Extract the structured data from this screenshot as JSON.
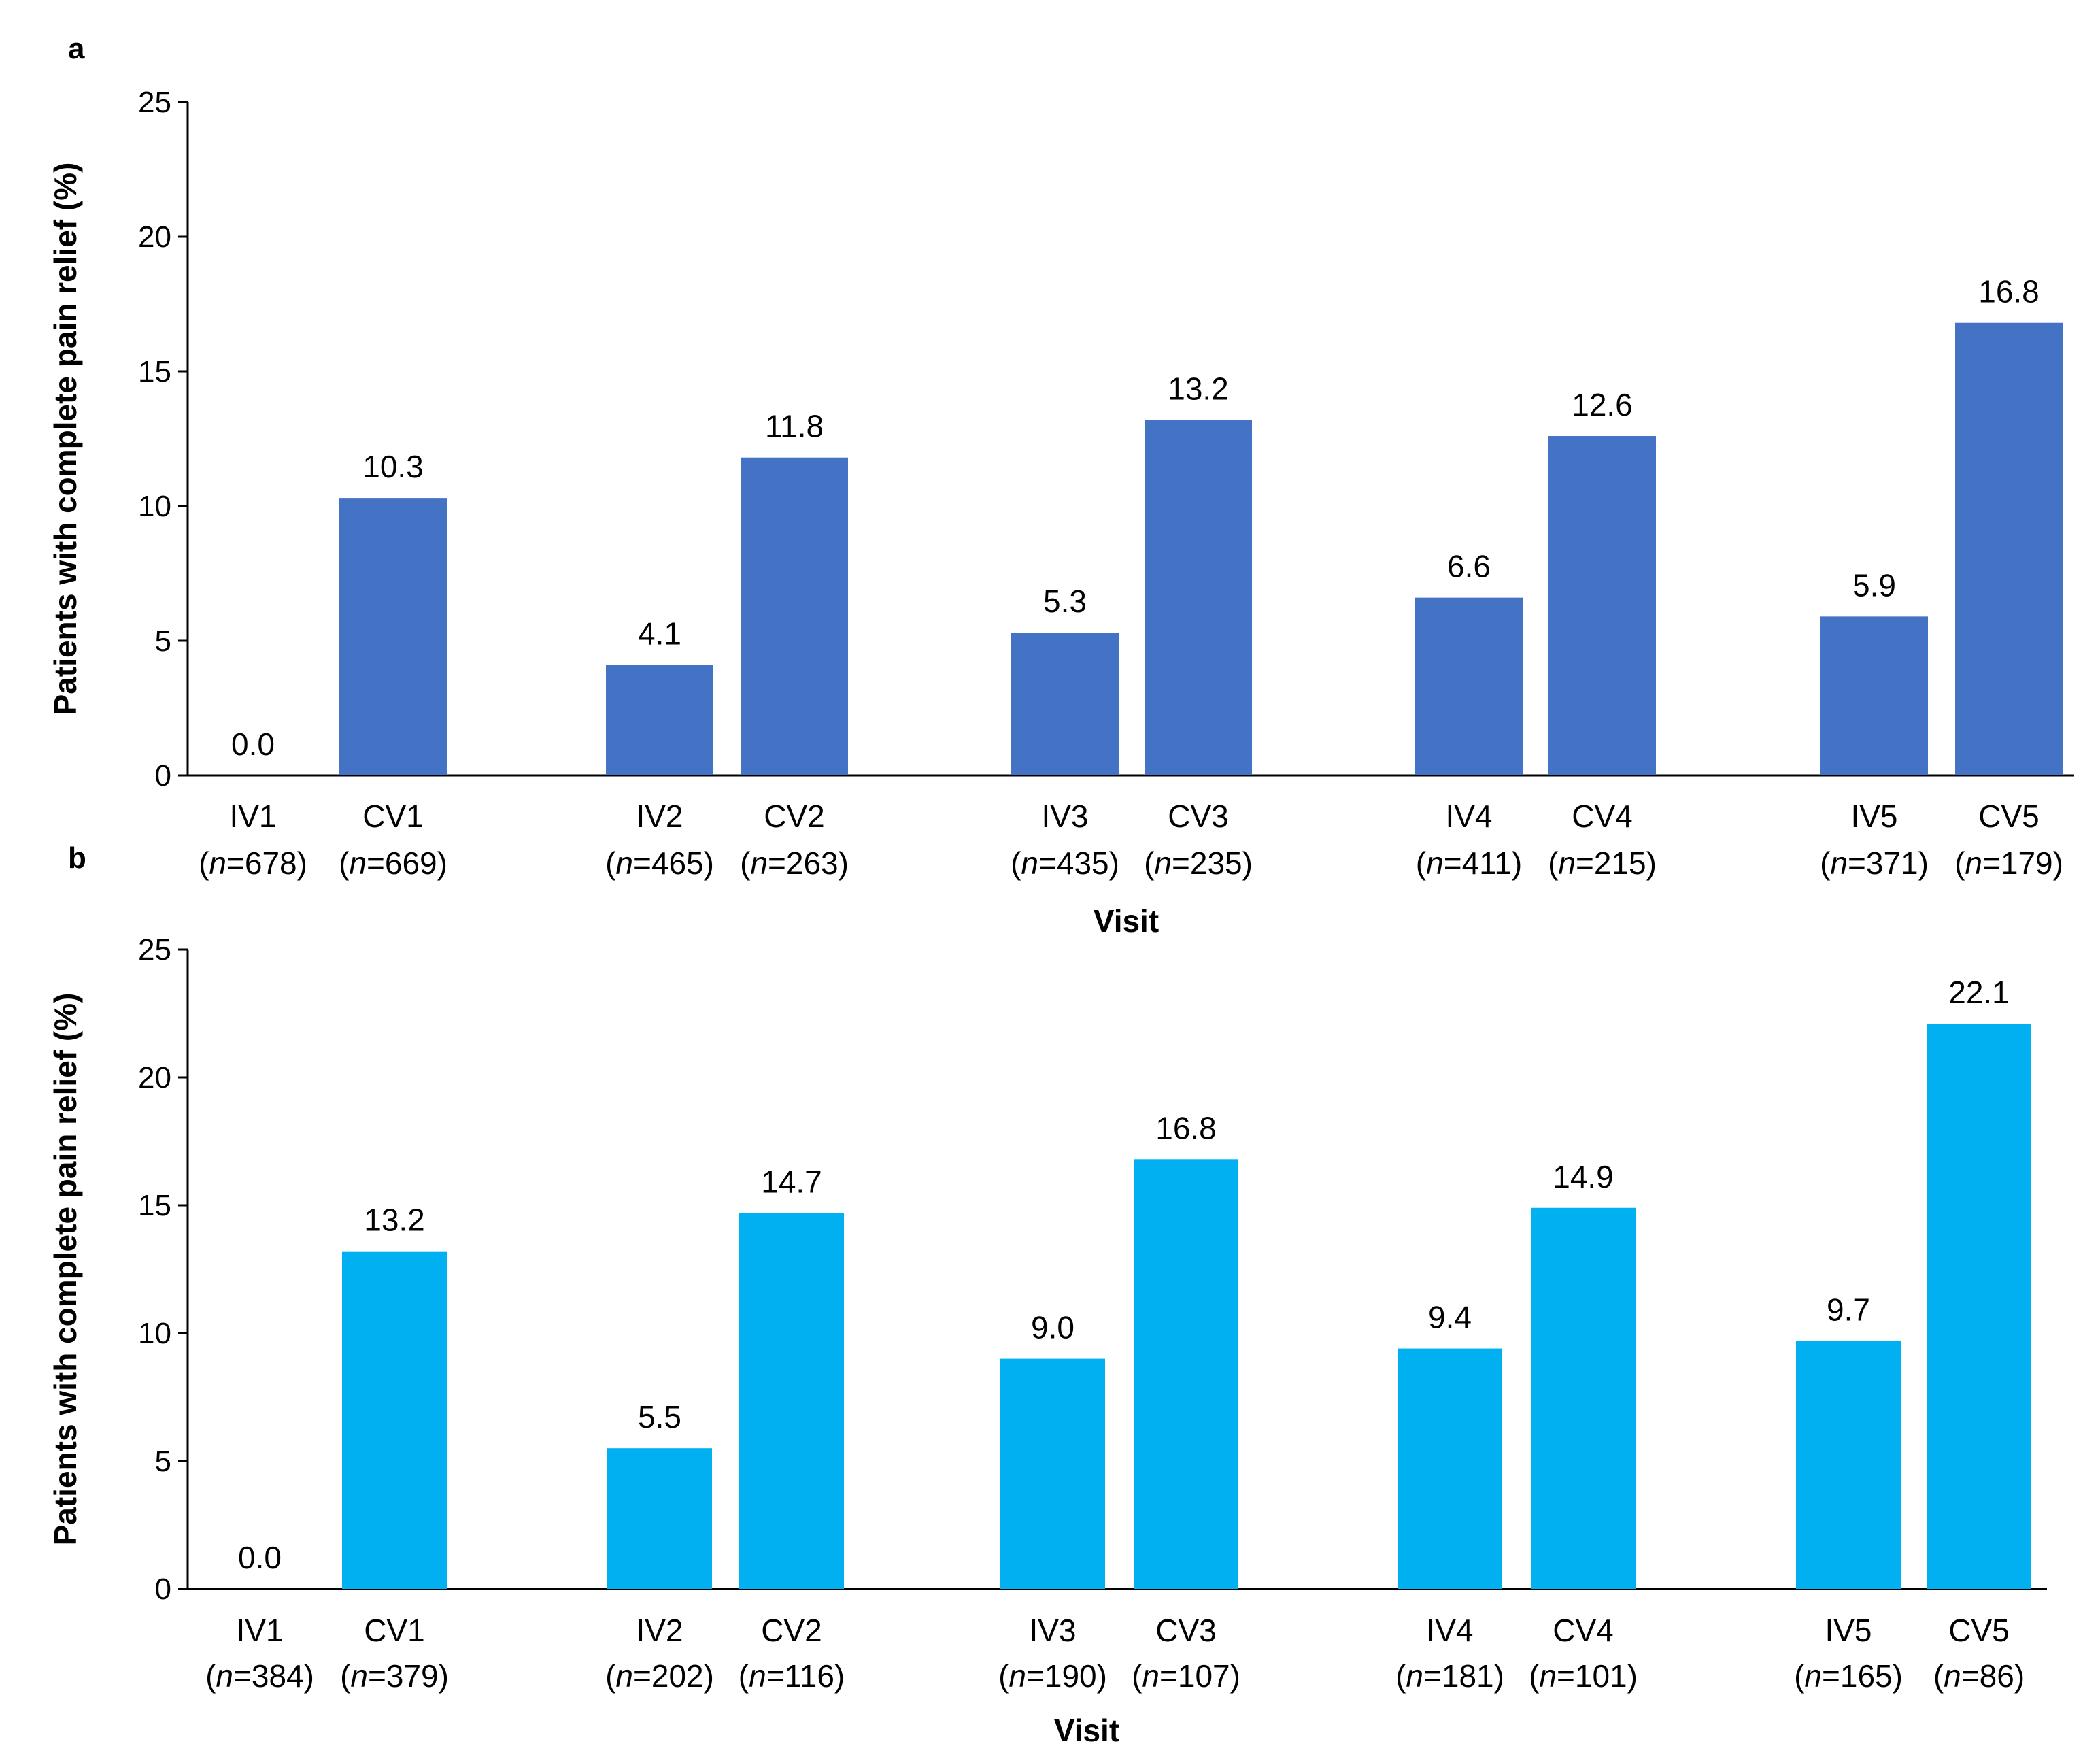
{
  "chart_data": [
    {
      "panel": "a",
      "type": "bar",
      "title": "",
      "xlabel": "Visit",
      "ylabel": "Patients with complete pain relief (%)",
      "ylim": [
        0,
        25
      ],
      "yticks": [
        0,
        5,
        10,
        15,
        20,
        25
      ],
      "grid": false,
      "color": "#4472C4",
      "categories": [
        {
          "label": "IV1",
          "n": "678",
          "value": 0.0,
          "value_label": "0.0"
        },
        {
          "label": "CV1",
          "n": "669",
          "value": 10.3,
          "value_label": "10.3"
        },
        {
          "label": "IV2",
          "n": "465",
          "value": 4.1,
          "value_label": "4.1"
        },
        {
          "label": "CV2",
          "n": "263",
          "value": 11.8,
          "value_label": "11.8"
        },
        {
          "label": "IV3",
          "n": "435",
          "value": 5.3,
          "value_label": "5.3"
        },
        {
          "label": "CV3",
          "n": "235",
          "value": 13.2,
          "value_label": "13.2"
        },
        {
          "label": "IV4",
          "n": "411",
          "value": 6.6,
          "value_label": "6.6"
        },
        {
          "label": "CV4",
          "n": "215",
          "value": 12.6,
          "value_label": "12.6"
        },
        {
          "label": "IV5",
          "n": "371",
          "value": 5.9,
          "value_label": "5.9"
        },
        {
          "label": "CV5",
          "n": "179",
          "value": 16.8,
          "value_label": "16.8"
        }
      ]
    },
    {
      "panel": "b",
      "type": "bar",
      "title": "",
      "xlabel": "Visit",
      "ylabel": "Patients with complete pain relief (%)",
      "ylim": [
        0,
        25
      ],
      "yticks": [
        0,
        5,
        10,
        15,
        20,
        25
      ],
      "grid": false,
      "color": "#00B0F0",
      "categories": [
        {
          "label": "IV1",
          "n": "384",
          "value": 0.0,
          "value_label": "0.0"
        },
        {
          "label": "CV1",
          "n": "379",
          "value": 13.2,
          "value_label": "13.2"
        },
        {
          "label": "IV2",
          "n": "202",
          "value": 5.5,
          "value_label": "5.5"
        },
        {
          "label": "CV2",
          "n": "116",
          "value": 14.7,
          "value_label": "14.7"
        },
        {
          "label": "IV3",
          "n": "190",
          "value": 9.0,
          "value_label": "9.0"
        },
        {
          "label": "CV3",
          "n": "107",
          "value": 16.8,
          "value_label": "16.8"
        },
        {
          "label": "IV4",
          "n": "181",
          "value": 9.4,
          "value_label": "9.4"
        },
        {
          "label": "CV4",
          "n": "101",
          "value": 14.9,
          "value_label": "14.9"
        },
        {
          "label": "IV5",
          "n": "165",
          "value": 9.7,
          "value_label": "9.7"
        },
        {
          "label": "CV5",
          "n": "86",
          "value": 22.1,
          "value_label": "22.1"
        }
      ]
    }
  ]
}
